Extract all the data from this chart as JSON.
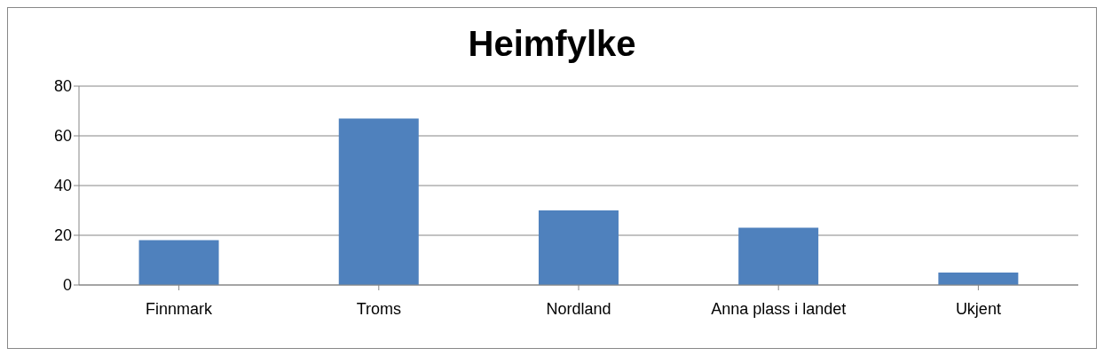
{
  "chart_data": {
    "type": "bar",
    "title": "Heimfylke",
    "categories": [
      "Finnmark",
      "Troms",
      "Nordland",
      "Anna plass i landet",
      "Ukjent"
    ],
    "values": [
      18,
      67,
      30,
      23,
      5
    ],
    "color": "#4f81bd",
    "ylim": [
      0,
      80
    ],
    "yticks": [
      0,
      20,
      40,
      60,
      80
    ],
    "grid": "y"
  }
}
